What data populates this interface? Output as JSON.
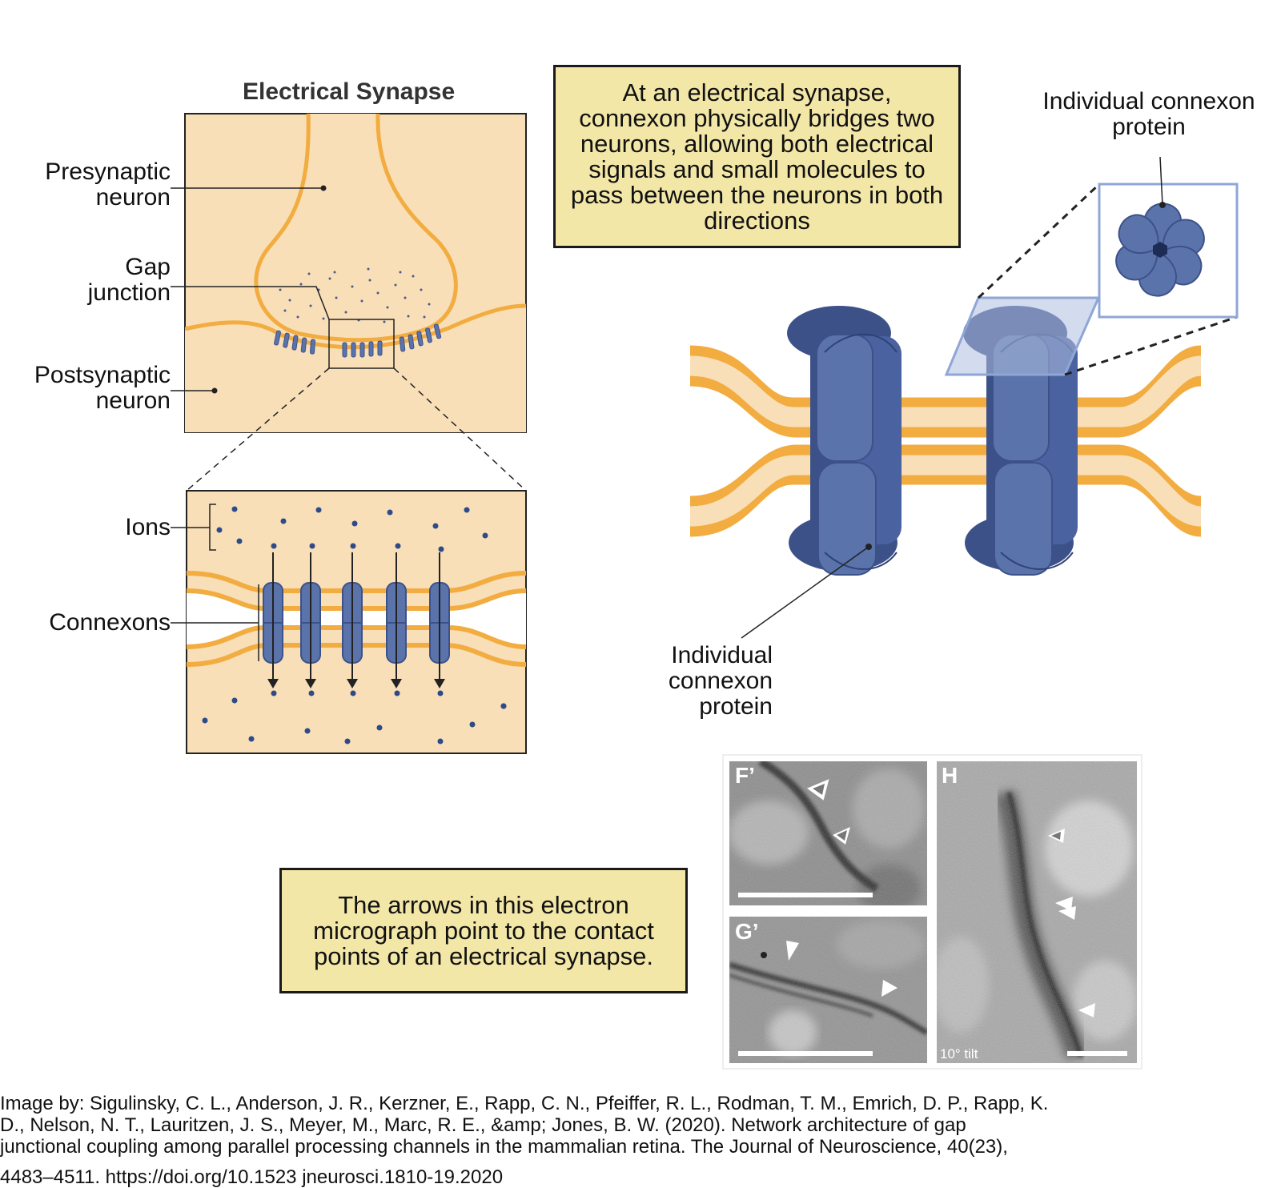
{
  "title": "Electrical Synapse",
  "labels": {
    "presynaptic": "Presynaptic\nneuron",
    "gap_junction": "Gap\njunction",
    "postsynaptic": "Postsynaptic\nneuron",
    "ions": "Ions",
    "connexons": "Connexons",
    "connexon_bottom": "Individual\nconnexon\nprotein",
    "connexon_top": "Individual connexon\nprotein"
  },
  "callouts": {
    "top": "At an electrical synapse, connexon physically bridges two neurons, allowing both electrical signals and small molecules to pass between the neurons in both directions",
    "bottom": "The arrows in this electron micrograph point to the contact points of an electrical synapse."
  },
  "micrograph": {
    "panel_f": "F’",
    "panel_g": "G’",
    "panel_h": "H",
    "tilt": "10° tilt"
  },
  "citation": {
    "line1": "Image by: Sigulinsky, C. L., Anderson, J. R., Kerzner, E., Rapp, C. N., Pfeiffer, R. L., Rodman, T. M., Emrich, D. P., Rapp, K.",
    "line2": "D., Nelson, N. T., Lauritzen, J. S., Meyer, M., Marc, R. E., &amp; Jones, B. W. (2020). Network architecture of gap",
    "line3": "junctional coupling among parallel processing channels in the mammalian retina. The Journal of Neuroscience, 40(23),",
    "line4": "4483–4511. https://doi.org/10.1523 jneurosci.1810-19.2020"
  },
  "colors": {
    "membrane": "#f2ac3f",
    "cytoplasm": "#f8dfb8",
    "connexon": "#5a73ab",
    "connexon_dark": "#3d5189",
    "callout_bg": "#f3e7a8"
  }
}
